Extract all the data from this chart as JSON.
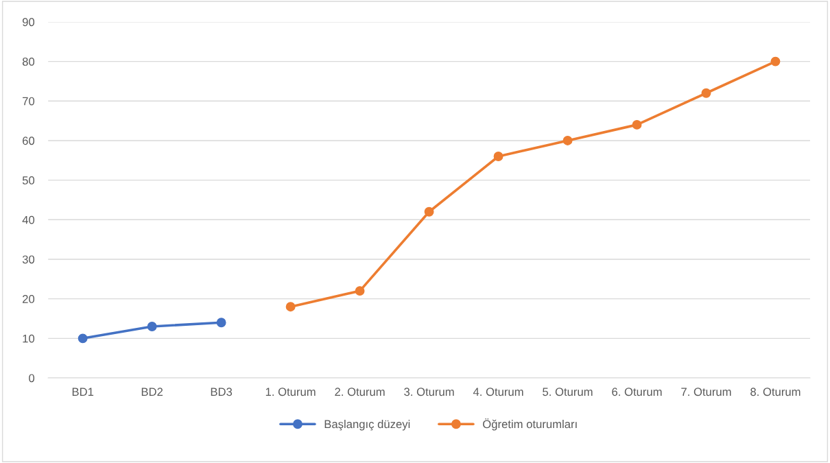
{
  "chart_data": {
    "type": "line",
    "categories": [
      "BD1",
      "BD2",
      "BD3",
      "1. Oturum",
      "2. Oturum",
      "3. Oturum",
      "4. Oturum",
      "5. Oturum",
      "6. Oturum",
      "7. Oturum",
      "8. Oturum"
    ],
    "series": [
      {
        "name": "Başlangıç düzeyi",
        "color": "#4472c4",
        "values": [
          10,
          13,
          14,
          null,
          null,
          null,
          null,
          null,
          null,
          null,
          null
        ]
      },
      {
        "name": "Öğretim oturumları",
        "color": "#ed7d31",
        "values": [
          null,
          null,
          null,
          18,
          22,
          42,
          56,
          60,
          64,
          72,
          80
        ]
      }
    ],
    "ylim": [
      0,
      90
    ],
    "yticks": [
      0,
      10,
      20,
      30,
      40,
      50,
      60,
      70,
      80,
      90
    ],
    "grid": "y",
    "legend": "bottom",
    "marker": "circle",
    "line_style": "solid"
  }
}
